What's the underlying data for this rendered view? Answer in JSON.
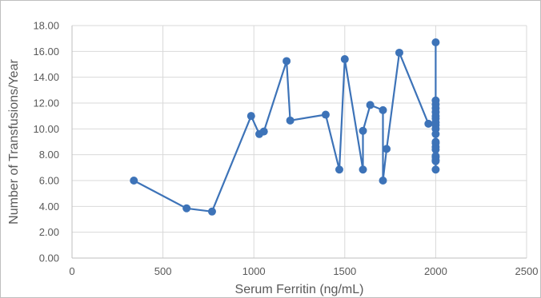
{
  "chart_data": {
    "type": "line",
    "title": "",
    "xlabel": "Serum Ferritin (ng/mL)",
    "ylabel": "Number of Transfusions/Year",
    "xlim": [
      0,
      2500
    ],
    "ylim": [
      0,
      18
    ],
    "x_ticks": [
      0,
      500,
      1000,
      1500,
      2000,
      2500
    ],
    "x_tick_labels": [
      "0",
      "500",
      "1000",
      "1500",
      "2000",
      "2500"
    ],
    "y_ticks": [
      0,
      2,
      4,
      6,
      8,
      10,
      12,
      14,
      16,
      18
    ],
    "y_tick_labels": [
      "0.00",
      "2.00",
      "4.00",
      "6.00",
      "8.00",
      "10.00",
      "12.00",
      "14.00",
      "16.00",
      "18.00"
    ],
    "grid": true,
    "legend": "none",
    "color": "#3d73b8",
    "series": [
      {
        "x": [
          340,
          630,
          770,
          985,
          1030,
          1055,
          1180,
          1200,
          1395,
          1470,
          1500,
          1600,
          1600,
          1640,
          1710,
          1710,
          1730,
          1800,
          1960,
          2000,
          2000,
          2000,
          2000,
          2000,
          2000,
          2000,
          2000,
          2000,
          2000,
          2000,
          2000,
          2000,
          2000,
          2000,
          2000,
          2000,
          2000,
          2000,
          2000
        ],
        "y": [
          6.0,
          3.85,
          3.6,
          11.0,
          9.6,
          9.8,
          15.25,
          10.65,
          11.1,
          6.85,
          15.4,
          6.85,
          9.85,
          11.85,
          11.45,
          6.0,
          8.45,
          15.9,
          10.4,
          10.3,
          10.0,
          10.5,
          11.0,
          10.8,
          11.3,
          11.6,
          11.9,
          12.2,
          16.7,
          9.6,
          9.0,
          8.6,
          8.9,
          8.4,
          7.8,
          7.5,
          7.9,
          7.6,
          6.85
        ]
      }
    ]
  }
}
